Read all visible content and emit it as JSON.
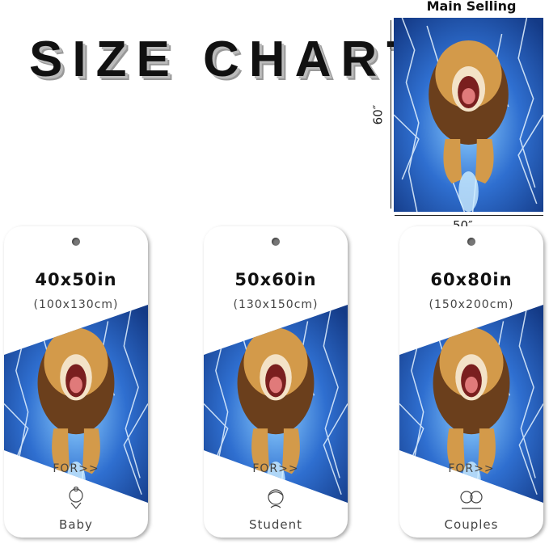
{
  "title": "SIZE CHART",
  "main": {
    "label": "Main Selling",
    "height": "60″",
    "width": "50″"
  },
  "cards": [
    {
      "size": "40x50in",
      "cm": "(100x130cm)",
      "for": "FOR>>",
      "who": "Baby",
      "icon": "baby-icon"
    },
    {
      "size": "50x60in",
      "cm": "(130x150cm)",
      "for": "FOR>>",
      "who": "Student",
      "icon": "student-icon"
    },
    {
      "size": "60x80in",
      "cm": "(150x200cm)",
      "for": "FOR>>",
      "who": "Couples",
      "icon": "couple-icon"
    }
  ],
  "colors": {
    "lightning_bg": "#1d4fa8",
    "lion": "#c98d3e",
    "mane": "#6b3f1c"
  }
}
